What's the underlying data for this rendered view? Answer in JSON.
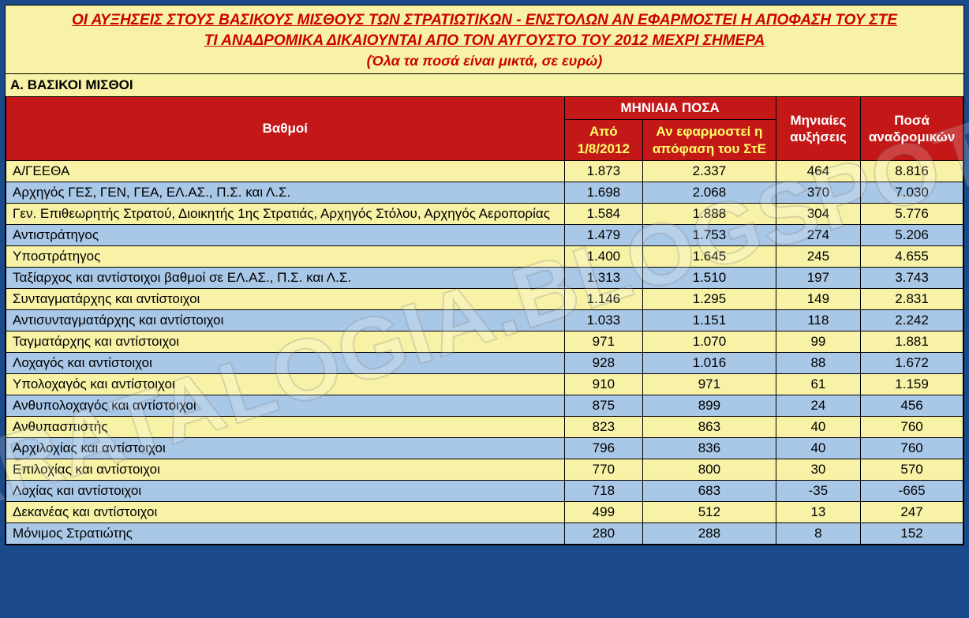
{
  "colors": {
    "page_bg": "#1b4a8a",
    "header_bg": "#f7f2a6",
    "header_text": "#cc0000",
    "section_bg": "#f7f2a6",
    "section_text": "#000000",
    "thead_bg": "#c41818",
    "thead_text_yellow": "#ffff66",
    "thead_text_white": "#ffffff",
    "row_odd_bg": "#f7f2a6",
    "row_even_bg": "#a9c7e6",
    "border": "#000000",
    "watermark": "rgba(255,255,255,0.18)"
  },
  "watermark": "STARATALOGIA.BLOGSPOT.GR",
  "title": {
    "line1": "ΟΙ ΑΥΞΗΣΕΙΣ ΣΤΟΥΣ ΒΑΣΙΚΟΥΣ ΜΙΣΘΟΥΣ ΤΩΝ ΣΤΡΑΤΙΩΤΙΚΩΝ - ΕΝΣΤΟΛΩΝ ΑΝ ΕΦΑΡΜΟΣΤΕΙ Η ΑΠΟΦΑΣΗ ΤΟΥ ΣΤΕ",
    "line2": "ΤΙ ΑΝΑΔΡΟΜΙΚΑ ΔΙΚΑΙΟΥΝΤΑΙ ΑΠΟ ΤΟΝ ΑΥΓΟΥΣΤΟ ΤΟΥ 2012 ΜΕΧΡΙ ΣΗΜΕΡΑ",
    "line3": "(Όλα τα ποσά είναι μικτά, σε ευρώ)"
  },
  "section_a_label": "Α. ΒΑΣΙΚΟΙ ΜΙΣΘΟΙ",
  "table": {
    "columns": {
      "rank": "Βαθμοί",
      "monthly_group": "ΜΗΝΙΑΙΑ ΠΟΣΑ",
      "from_date_l1": "Από",
      "from_date_l2": "1/8/2012",
      "if_applied_l1": "Αν εφαρμοστεί η",
      "if_applied_l2": "απόφαση του ΣτΕ",
      "increase_l1": "Μηνιαίες",
      "increase_l2": "αυξήσεις",
      "retro_l1": "Ποσά",
      "retro_l2": "αναδρομικών"
    },
    "rows": [
      {
        "rank": "Α/ΓΕΕΘΑ",
        "from": "1.873",
        "applied": "2.337",
        "inc": "464",
        "retro": "8.816"
      },
      {
        "rank": "Αρχηγός ΓΕΣ, ΓΕΝ, ΓΕΑ, ΕΛ.ΑΣ., Π.Σ. και Λ.Σ.",
        "from": "1.698",
        "applied": "2.068",
        "inc": "370",
        "retro": "7.030"
      },
      {
        "rank": "Γεν. Επιθεωρητής Στρατού, Διοικητής 1ης Στρατιάς, Αρχηγός Στόλου, Αρχηγός Αεροπορίας",
        "from": "1.584",
        "applied": "1.888",
        "inc": "304",
        "retro": "5.776"
      },
      {
        "rank": "Αντιστράτηγος",
        "from": "1.479",
        "applied": "1.753",
        "inc": "274",
        "retro": "5.206"
      },
      {
        "rank": "Υποστράτηγος",
        "from": "1.400",
        "applied": "1.645",
        "inc": "245",
        "retro": "4.655"
      },
      {
        "rank": "Ταξίαρχος και αντίστοιχοι βαθμοί σε ΕΛ.ΑΣ., Π.Σ. και Λ.Σ.",
        "from": "1.313",
        "applied": "1.510",
        "inc": "197",
        "retro": "3.743"
      },
      {
        "rank": "Συνταγματάρχης και αντίστοιχοι",
        "from": "1.146",
        "applied": "1.295",
        "inc": "149",
        "retro": "2.831"
      },
      {
        "rank": "Αντισυνταγματάρχης και αντίστοιχοι",
        "from": "1.033",
        "applied": "1.151",
        "inc": "118",
        "retro": "2.242"
      },
      {
        "rank": "Ταγματάρχης και αντίστοιχοι",
        "from": "971",
        "applied": "1.070",
        "inc": "99",
        "retro": "1.881"
      },
      {
        "rank": "Λοχαγός και αντίστοιχοι",
        "from": "928",
        "applied": "1.016",
        "inc": "88",
        "retro": "1.672"
      },
      {
        "rank": "Υπολοχαγός και αντίστοιχοι",
        "from": "910",
        "applied": "971",
        "inc": "61",
        "retro": "1.159"
      },
      {
        "rank": "Ανθυπολοχαγός και αντίστοιχοι",
        "from": "875",
        "applied": "899",
        "inc": "24",
        "retro": "456"
      },
      {
        "rank": "Ανθυπασπιστής",
        "from": "823",
        "applied": "863",
        "inc": "40",
        "retro": "760"
      },
      {
        "rank": "Αρχιλοχίας και αντίστοιχοι",
        "from": "796",
        "applied": "836",
        "inc": "40",
        "retro": "760"
      },
      {
        "rank": "Επιλοχίας και αντίστοιχοι",
        "from": "770",
        "applied": "800",
        "inc": "30",
        "retro": "570"
      },
      {
        "rank": "Λοχίας και αντίστοιχοι",
        "from": "718",
        "applied": "683",
        "inc": "-35",
        "retro": "-665"
      },
      {
        "rank": "Δεκανέας και αντίστοιχοι",
        "from": "499",
        "applied": "512",
        "inc": "13",
        "retro": "247"
      },
      {
        "rank": "Μόνιμος Στρατιώτης",
        "from": "280",
        "applied": "288",
        "inc": "8",
        "retro": "152"
      }
    ]
  }
}
